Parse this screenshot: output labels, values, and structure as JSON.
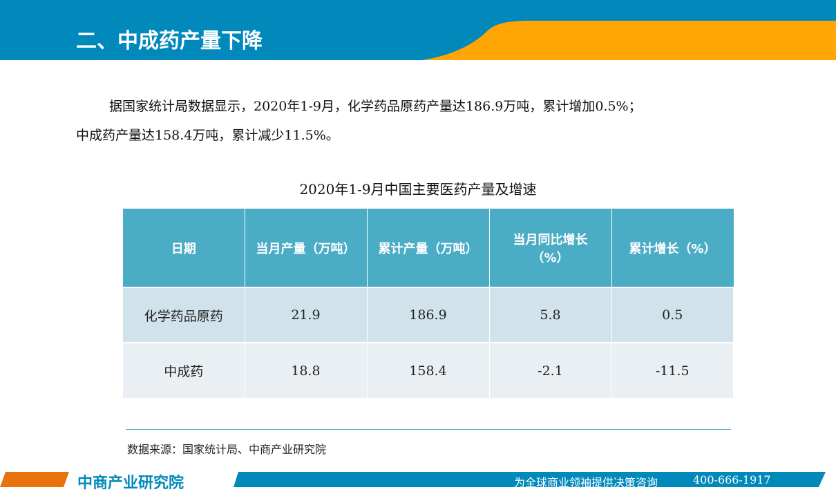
{
  "header": {
    "title": "二、中成药产量下降"
  },
  "paragraph": {
    "line1": "据国家统计局数据显示，2020年1-9月，化学药品原药产量达186.9万吨，累计增加0.5%；",
    "line2": "中成药产量达158.4万吨，累计减少11.5%。"
  },
  "table": {
    "title": "2020年1-9月中国主要医药产量及增速",
    "headers": [
      "日期",
      "当月产量（万吨）",
      "累计产量（万吨）",
      "当月同比增长（%）",
      "累计增长（%）"
    ],
    "rows": [
      [
        "化学药品原药",
        "21.9",
        "186.9",
        "5.8",
        "0.5"
      ],
      [
        "中成药",
        "18.8",
        "158.4",
        "-2.1",
        "-11.5"
      ]
    ]
  },
  "source": "数据来源：国家统计局、中商产业研究院",
  "footer": {
    "logo": "中商产业研究院",
    "slogan": "为全球商业领袖提供决策咨询",
    "phone": "400-666-1917"
  },
  "colors": {
    "blue": "#0189BC",
    "orange": "#FFA505",
    "table_header": "#4BACC6"
  }
}
